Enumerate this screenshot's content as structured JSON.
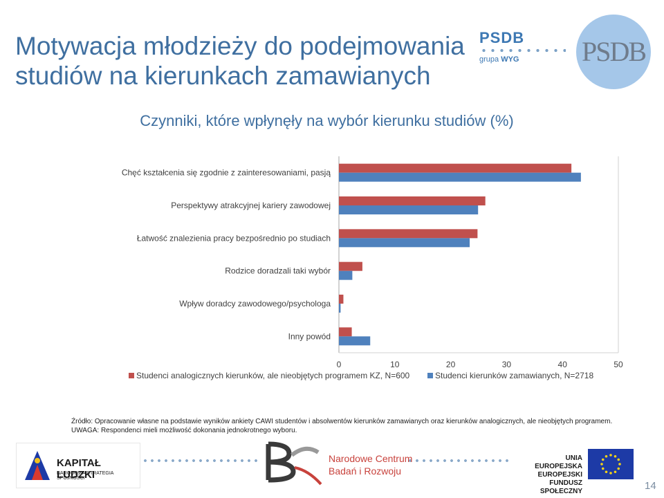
{
  "slide": {
    "title": "Motywacja młodzieży do podejmowania studiów na kierunkach zamawianych",
    "page_number": "14",
    "source_note": "Źródło: Opracowanie własne na podstawie wyników ankiety CAWI studentów i absolwentów kierunków zamawianych oraz kierunków analogicznych, ale nieobjętych programem. UWAGA: Respondenci mieli możliwość dokonania jednokrotnego wyboru."
  },
  "logos": {
    "psdb_name": "PSDB",
    "psdb_group_prefix": "grupa ",
    "psdb_group_name": "WYG",
    "psdb_circle": "PSDB",
    "kapital_name": "KAPITAŁ LUDZKI",
    "kapital_sub": "NARODOWA STRATEGIA SPÓJNOŚCI",
    "ncbr_line1": "Narodowe Centrum",
    "ncbr_line2": "Badań i Rozwoju",
    "ue_line1": "UNIA EUROPEJSKA",
    "ue_line2": "EUROPEJSKI",
    "ue_line3": "FUNDUSZ SPOŁECZNY"
  },
  "colors": {
    "accent": "#3f6fa0",
    "series_red": "#c0504d",
    "series_blue": "#4f81bd"
  },
  "chart_data": {
    "type": "bar",
    "orientation": "horizontal",
    "title": "Czynniki, które wpłynęły na wybór kierunku studiów (%)",
    "categories": [
      "Chęć kształcenia się zgodnie z zainteresowaniami, pasją",
      "Perspektywy atrakcyjnej kariery zawodowej",
      "Łatwość znalezienia pracy bezpośrednio po studiach",
      "Rodzice doradzali taki wybór",
      "Wpływ doradcy zawodowego/psychologa",
      "Inny powód"
    ],
    "series": [
      {
        "name": "Studenci analogicznych kierunków, ale nieobjętych programem KZ, N=600",
        "color": "#c0504d",
        "values": [
          41.6,
          26.2,
          24.8,
          4.2,
          0.8,
          2.3
        ]
      },
      {
        "name": "Studenci kierunków zamawianych, N=2718",
        "color": "#4f81bd",
        "values": [
          43.3,
          24.9,
          23.4,
          2.4,
          0.3,
          5.6
        ]
      }
    ],
    "xlim": [
      0,
      50
    ],
    "xticks": [
      0,
      10,
      20,
      30,
      40,
      50
    ],
    "xlabel": "",
    "ylabel": "",
    "legend_position": "bottom"
  }
}
